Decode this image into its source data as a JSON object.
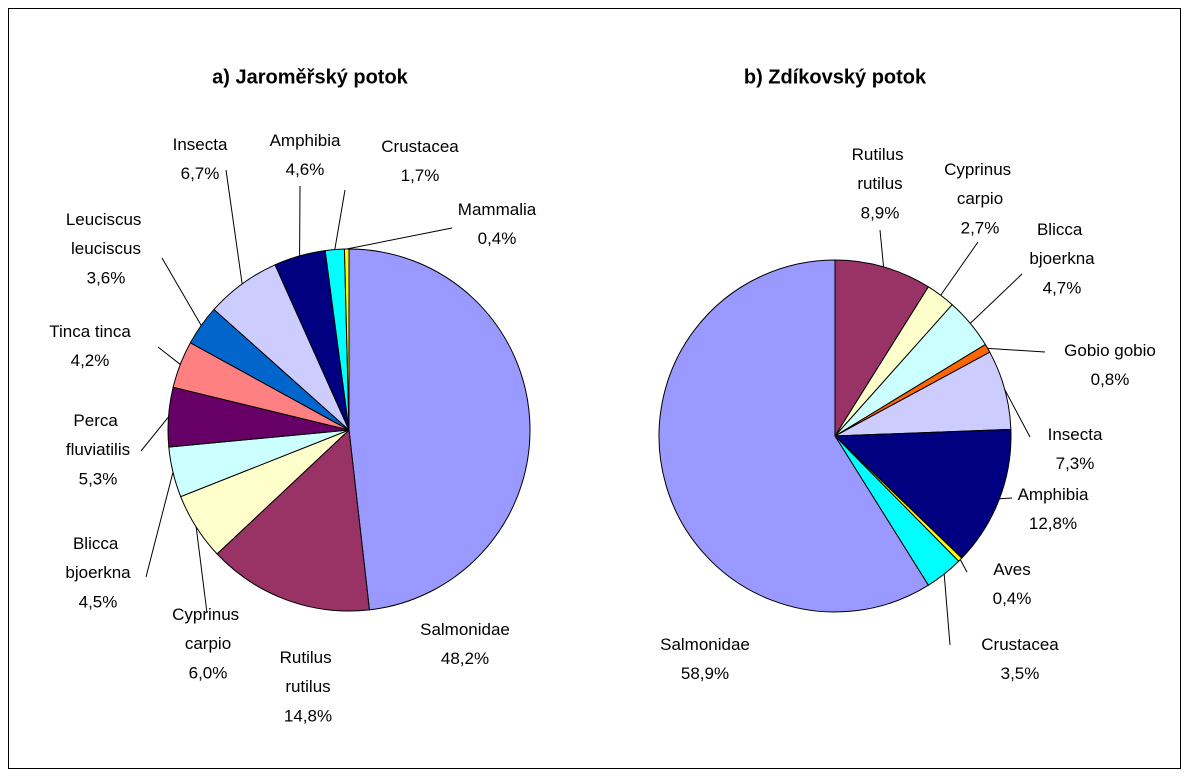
{
  "chart_data": [
    {
      "type": "pie",
      "title": "a) Jaroměřský potok",
      "categories": [
        "Salmonidae",
        "Rutilus rutilus",
        "Cyprinus carpio",
        "Blicca bjoerkna",
        "Perca fluviatilis",
        "Tinca tinca",
        "Leuciscus leuciscus",
        "Insecta",
        "Amphibia",
        "Crustacea",
        "Mammalia"
      ],
      "values": [
        48.2,
        14.8,
        6.0,
        4.5,
        5.3,
        4.2,
        3.6,
        6.7,
        4.6,
        1.7,
        0.4
      ],
      "value_labels": [
        "48,2%",
        "14,8%",
        "6,0%",
        "4,5%",
        "5,3%",
        "4,2%",
        "3,6%",
        "6,7%",
        "4,6%",
        "1,7%",
        "0,4%"
      ],
      "colors": [
        "#9999ff",
        "#993366",
        "#ffffcc",
        "#ccffff",
        "#660066",
        "#ff8080",
        "#0066cc",
        "#ccccff",
        "#000080",
        "#00ffff",
        "#ffff00"
      ]
    },
    {
      "type": "pie",
      "title": "b) Zdíkovský potok",
      "categories": [
        "Rutilus rutilus",
        "Cyprinus carpio",
        "Blicca bjoerkna",
        "Gobio gobio",
        "Insecta",
        "Amphibia",
        "Aves",
        "Crustacea",
        "Salmonidae"
      ],
      "values": [
        8.9,
        2.7,
        4.7,
        0.8,
        7.3,
        12.8,
        0.4,
        3.5,
        58.9
      ],
      "value_labels": [
        "8,9%",
        "2,7%",
        "4,7%",
        "0,8%",
        "7,3%",
        "12,8%",
        "0,4%",
        "3,5%",
        "58,9%"
      ],
      "colors": [
        "#993366",
        "#ffffcc",
        "#ccffff",
        "#ff6600",
        "#ccccff",
        "#000080",
        "#ffff00",
        "#00ffff",
        "#9999ff"
      ]
    }
  ]
}
